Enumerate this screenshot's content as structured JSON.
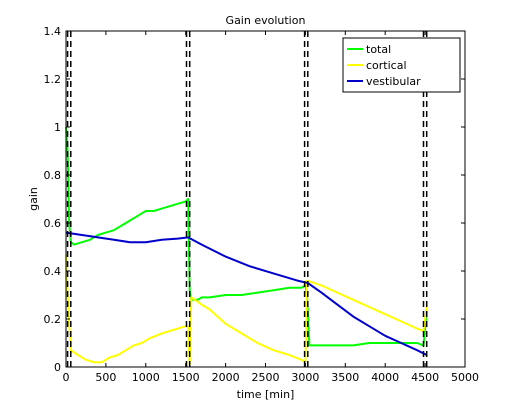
{
  "chart_data": {
    "type": "line",
    "title": "Gain evolution",
    "xlabel": "time [min]",
    "ylabel": "gain",
    "xlim": [
      0,
      5000
    ],
    "ylim": [
      0,
      1.4
    ],
    "xticks": [
      0,
      500,
      1000,
      1500,
      2000,
      2500,
      3000,
      3500,
      4000,
      4500,
      5000
    ],
    "yticks": [
      0,
      0.2,
      0.4,
      0.6,
      0.8,
      1,
      1.2,
      1.4
    ],
    "grid": false,
    "legend_position": "top-right",
    "vertical_markers": [
      20,
      60,
      1510,
      1550,
      2990,
      3030,
      4480,
      4520
    ],
    "series": [
      {
        "name": "total",
        "color": "#00ff00",
        "points": [
          [
            0,
            1.0
          ],
          [
            20,
            0.9
          ],
          [
            40,
            0.6
          ],
          [
            60,
            0.52
          ],
          [
            100,
            0.51
          ],
          [
            200,
            0.52
          ],
          [
            300,
            0.53
          ],
          [
            400,
            0.55
          ],
          [
            500,
            0.56
          ],
          [
            600,
            0.57
          ],
          [
            700,
            0.59
          ],
          [
            800,
            0.61
          ],
          [
            900,
            0.63
          ],
          [
            1000,
            0.65
          ],
          [
            1100,
            0.65
          ],
          [
            1200,
            0.66
          ],
          [
            1300,
            0.67
          ],
          [
            1400,
            0.68
          ],
          [
            1500,
            0.69
          ],
          [
            1530,
            0.7
          ],
          [
            1550,
            0.32
          ],
          [
            1570,
            0.28
          ],
          [
            1650,
            0.28
          ],
          [
            1700,
            0.29
          ],
          [
            1800,
            0.29
          ],
          [
            2000,
            0.3
          ],
          [
            2200,
            0.3
          ],
          [
            2400,
            0.31
          ],
          [
            2600,
            0.32
          ],
          [
            2800,
            0.33
          ],
          [
            2950,
            0.33
          ],
          [
            3000,
            0.34
          ],
          [
            3020,
            0.3
          ],
          [
            3050,
            0.09
          ],
          [
            3200,
            0.09
          ],
          [
            3400,
            0.09
          ],
          [
            3600,
            0.09
          ],
          [
            3800,
            0.1
          ],
          [
            4000,
            0.1
          ],
          [
            4200,
            0.1
          ],
          [
            4400,
            0.1
          ],
          [
            4480,
            0.09
          ],
          [
            4520,
            0.23
          ]
        ]
      },
      {
        "name": "cortical",
        "color": "#ffff00",
        "points": [
          [
            0,
            0.47
          ],
          [
            20,
            0.3
          ],
          [
            60,
            0.07
          ],
          [
            150,
            0.05
          ],
          [
            250,
            0.03
          ],
          [
            350,
            0.02
          ],
          [
            450,
            0.02
          ],
          [
            550,
            0.04
          ],
          [
            650,
            0.05
          ],
          [
            750,
            0.07
          ],
          [
            850,
            0.09
          ],
          [
            950,
            0.1
          ],
          [
            1050,
            0.12
          ],
          [
            1200,
            0.14
          ],
          [
            1300,
            0.15
          ],
          [
            1400,
            0.16
          ],
          [
            1500,
            0.17
          ],
          [
            1530,
            0.17
          ],
          [
            1550,
            0.01
          ],
          [
            1570,
            0.29
          ],
          [
            1700,
            0.26
          ],
          [
            1800,
            0.24
          ],
          [
            1900,
            0.21
          ],
          [
            2000,
            0.18
          ],
          [
            2200,
            0.14
          ],
          [
            2400,
            0.1
          ],
          [
            2600,
            0.07
          ],
          [
            2800,
            0.05
          ],
          [
            2950,
            0.03
          ],
          [
            3000,
            0.02
          ],
          [
            3020,
            0.36
          ],
          [
            3200,
            0.34
          ],
          [
            3400,
            0.31
          ],
          [
            3600,
            0.28
          ],
          [
            3800,
            0.25
          ],
          [
            4000,
            0.22
          ],
          [
            4200,
            0.19
          ],
          [
            4400,
            0.16
          ],
          [
            4480,
            0.15
          ],
          [
            4520,
            0.25
          ]
        ]
      },
      {
        "name": "vestibular",
        "color": "#0000cc",
        "points": [
          [
            0,
            0.56
          ],
          [
            200,
            0.55
          ],
          [
            400,
            0.54
          ],
          [
            600,
            0.53
          ],
          [
            800,
            0.52
          ],
          [
            1000,
            0.52
          ],
          [
            1200,
            0.53
          ],
          [
            1400,
            0.535
          ],
          [
            1530,
            0.54
          ],
          [
            1700,
            0.51
          ],
          [
            2000,
            0.46
          ],
          [
            2300,
            0.42
          ],
          [
            2600,
            0.39
          ],
          [
            2900,
            0.36
          ],
          [
            3030,
            0.35
          ],
          [
            3200,
            0.31
          ],
          [
            3400,
            0.26
          ],
          [
            3600,
            0.21
          ],
          [
            3800,
            0.17
          ],
          [
            4000,
            0.13
          ],
          [
            4200,
            0.1
          ],
          [
            4400,
            0.07
          ],
          [
            4520,
            0.05
          ]
        ]
      }
    ]
  }
}
